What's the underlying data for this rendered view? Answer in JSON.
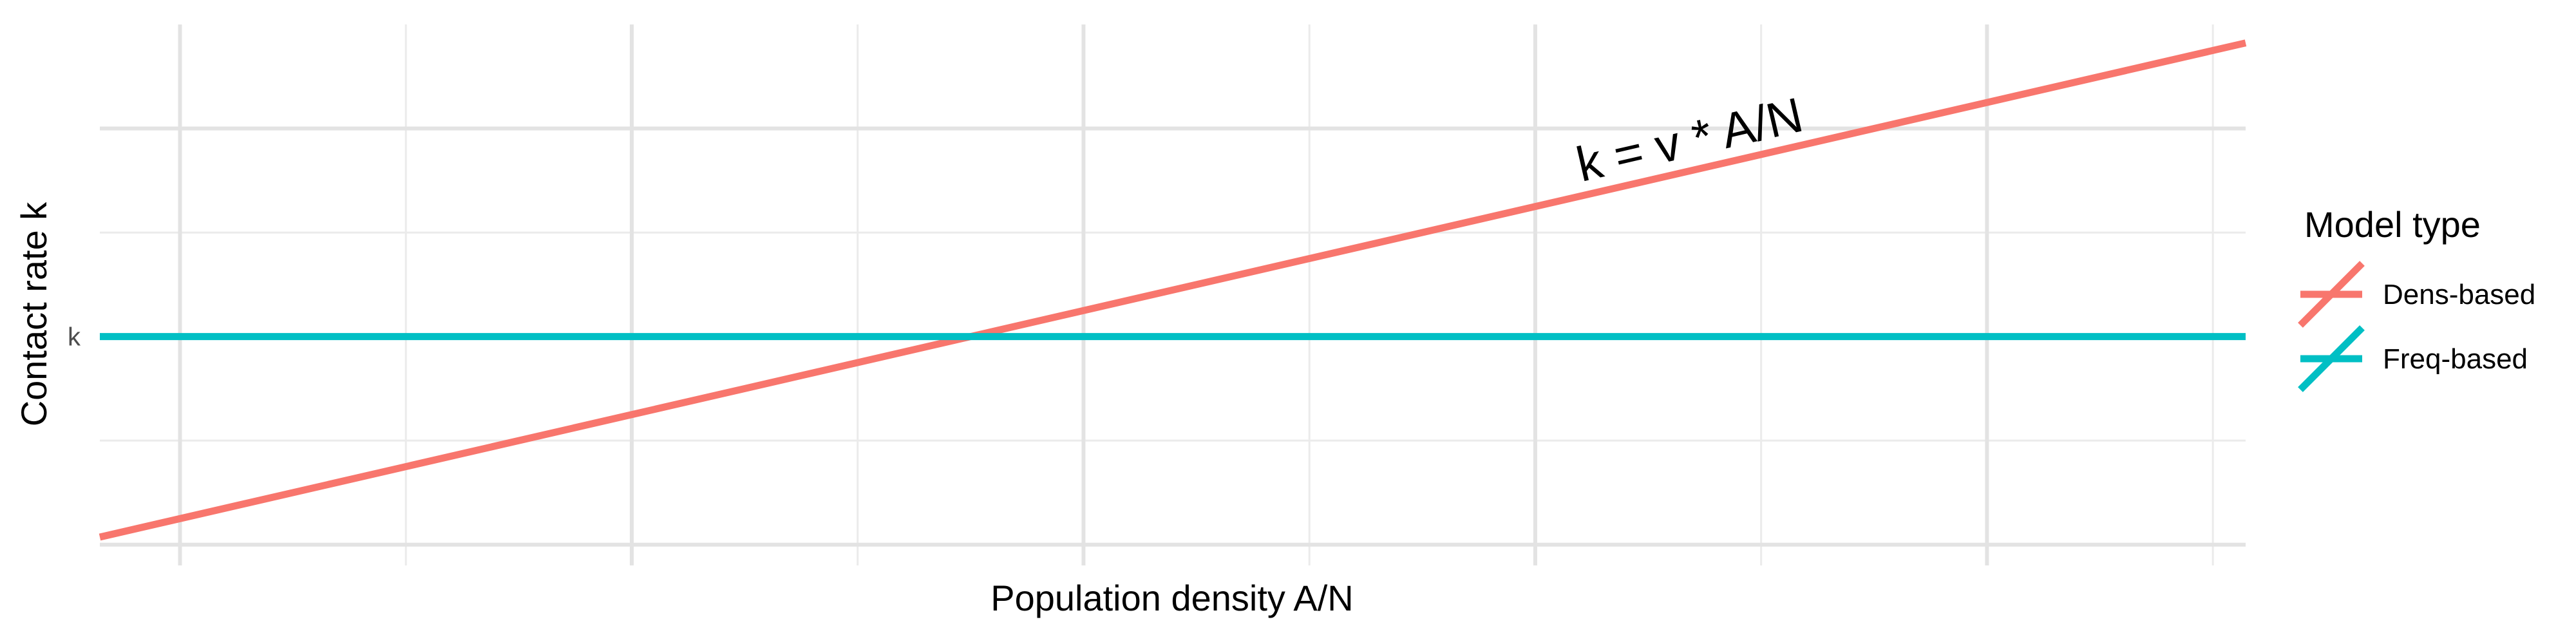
{
  "chart_data": {
    "type": "line",
    "xlabel": "Population density A/N",
    "ylabel": "Contact rate k",
    "xlim": [
      0,
      1
    ],
    "ylim": [
      0,
      1
    ],
    "y_ticks": [
      {
        "value": 0.4,
        "label": "k"
      }
    ],
    "grid": true,
    "legend": {
      "title": "Model type",
      "position": "right"
    },
    "series": [
      {
        "name": "Dens-based",
        "color": "#F8766D",
        "x": [
          0,
          1
        ],
        "y": [
          0.0,
          1.0
        ]
      },
      {
        "name": "Freq-based",
        "color": "#00BFC4",
        "x": [
          0,
          1
        ],
        "y": [
          0.4,
          0.4
        ]
      }
    ],
    "annotations": [
      {
        "text": "k = v * A/N",
        "series": "Dens-based",
        "x": 0.72
      }
    ]
  }
}
